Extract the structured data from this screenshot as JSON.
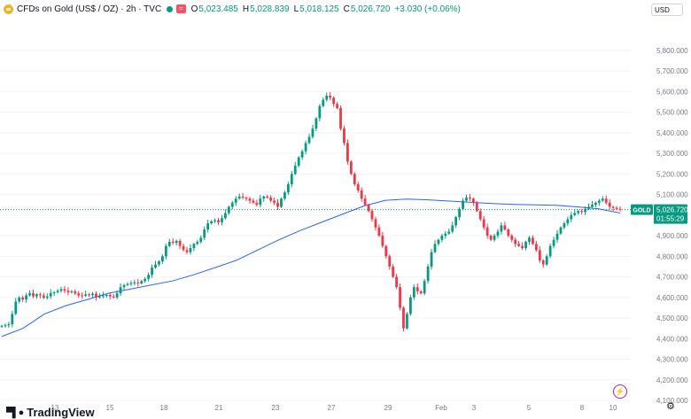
{
  "header": {
    "title": "CFDs on Gold (US$ / OZ) · 2h · TVC",
    "open_label": "O",
    "open": "5,023.485",
    "high_label": "H",
    "high": "5,028.839",
    "low_label": "L",
    "low": "5,018.125",
    "close_label": "C",
    "close": "5,026.720",
    "change": "+3.030 (+0.06%)",
    "badge": "≈"
  },
  "currency": "USD",
  "branding": "TradingView",
  "price_tag": {
    "symbol": "GOLD",
    "price": "5,026.720",
    "countdown": "01:55:29"
  },
  "colors": {
    "up": "#089981",
    "down": "#f23645",
    "ma": "#2962ff",
    "grid": "#f0f3fa",
    "axis_text": "#787b86",
    "last_price_line": "#089981"
  },
  "chart_data": {
    "type": "candlestick",
    "title": "CFDs on Gold (US$ / OZ) · 2h · TVC",
    "xlabel": "",
    "ylabel": "",
    "ylim": [
      4100,
      5950
    ],
    "y_ticks": [
      4100,
      4200,
      4300,
      4400,
      4500,
      4600,
      4700,
      4800,
      4900,
      5000,
      5100,
      5200,
      5300,
      5400,
      5500,
      5600,
      5700,
      5800
    ],
    "y_tick_labels": [
      "4,100.000",
      "4,200.000",
      "4,300.000",
      "4,400.000",
      "4,500.000",
      "4,600.000",
      "4,700.000",
      "4,800.000",
      "4,900.000",
      "5,000.000",
      "5,100.000",
      "5,200.000",
      "5,300.000",
      "5,400.000",
      "5,500.000",
      "5,600.000",
      "5,700.000",
      "5,800.000"
    ],
    "x_ticks": [
      "13",
      "15",
      "18",
      "21",
      "23",
      "27",
      "29",
      "Feb",
      "3",
      "5",
      "8",
      "10"
    ],
    "last_price": 5026.72,
    "series": [
      {
        "name": "GOLD price (approx. closes, 2h)",
        "values": [
          4462,
          4465,
          4470,
          4520,
          4580,
          4600,
          4590,
          4610,
          4620,
          4605,
          4615,
          4610,
          4598,
          4605,
          4622,
          4625,
          4632,
          4640,
          4632,
          4625,
          4630,
          4620,
          4610,
          4608,
          4615,
          4612,
          4618,
          4600,
          4605,
          4610,
          4612,
          4605,
          4600,
          4620,
          4650,
          4660,
          4665,
          4670,
          4672,
          4668,
          4680,
          4690,
          4710,
          4745,
          4760,
          4775,
          4800,
          4850,
          4870,
          4865,
          4875,
          4850,
          4830,
          4820,
          4840,
          4860,
          4870,
          4890,
          4930,
          4960,
          4970,
          4975,
          4965,
          4985,
          5010,
          5040,
          5060,
          5080,
          5090,
          5085,
          5080,
          5070,
          5060,
          5050,
          5080,
          5090,
          5085,
          5070,
          5060,
          5040,
          5080,
          5110,
          5150,
          5200,
          5240,
          5280,
          5310,
          5350,
          5380,
          5420,
          5470,
          5530,
          5560,
          5580,
          5570,
          5540,
          5520,
          5420,
          5350,
          5260,
          5200,
          5150,
          5120,
          5080,
          5050,
          5020,
          4980,
          4940,
          4900,
          4850,
          4800,
          4750,
          4700,
          4650,
          4550,
          4450,
          4520,
          4600,
          4650,
          4630,
          4620,
          4680,
          4750,
          4820,
          4860,
          4880,
          4900,
          4910,
          4920,
          4950,
          4990,
          5030,
          5070,
          5085,
          5080,
          5060,
          5020,
          4980,
          4940,
          4900,
          4880,
          4900,
          4920,
          4950,
          4930,
          4900,
          4880,
          4860,
          4850,
          4840,
          4870,
          4890,
          4860,
          4830,
          4780,
          4760,
          4800,
          4850,
          4880,
          4910,
          4940,
          4960,
          4980,
          5000,
          5010,
          5020,
          5015,
          5030,
          5040,
          5050,
          5060,
          5070,
          5080,
          5060,
          5040,
          5035,
          5030,
          5026.72
        ]
      },
      {
        "name": "Moving average",
        "values": [
          4410,
          4450,
          4520,
          4560,
          4590,
          4620,
          4640,
          4660,
          4680,
          4710,
          4745,
          4780,
          4830,
          4880,
          4925,
          4965,
          5005,
          5045,
          5072,
          5078,
          5074,
          5068,
          5062,
          5056,
          5052,
          5050,
          5048,
          5040,
          5030,
          5010
        ]
      }
    ]
  }
}
